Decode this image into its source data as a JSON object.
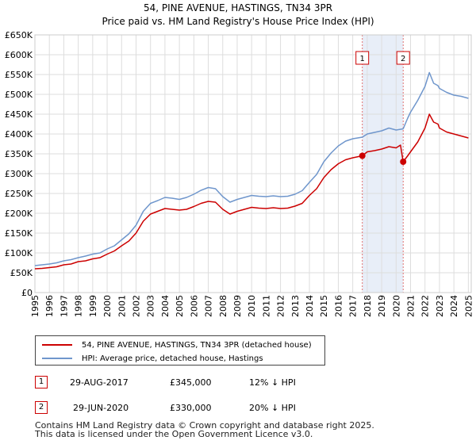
{
  "chart_data": {
    "type": "line",
    "title": "54, PINE AVENUE, HASTINGS, TN34 3PR",
    "subtitle": "Price paid vs. HM Land Registry's House Price Index (HPI)",
    "x_range": [
      1995,
      2025.2
    ],
    "ylim": [
      0,
      650000
    ],
    "y_ticks": [
      0,
      50000,
      100000,
      150000,
      200000,
      250000,
      300000,
      350000,
      400000,
      450000,
      500000,
      550000,
      600000,
      650000
    ],
    "y_tick_labels": [
      "£0",
      "£50K",
      "£100K",
      "£150K",
      "£200K",
      "£250K",
      "£300K",
      "£350K",
      "£400K",
      "£450K",
      "£500K",
      "£550K",
      "£600K",
      "£650K"
    ],
    "x_ticks": [
      1995,
      1996,
      1997,
      1998,
      1999,
      2000,
      2001,
      2002,
      2003,
      2004,
      2005,
      2006,
      2007,
      2008,
      2009,
      2010,
      2011,
      2012,
      2013,
      2014,
      2015,
      2016,
      2017,
      2018,
      2019,
      2020,
      2021,
      2022,
      2023,
      2024,
      2025
    ],
    "grid": true,
    "shaded_region": [
      2017.66,
      2020.49
    ],
    "series": [
      {
        "name": "54, PINE AVENUE, HASTINGS, TN34 3PR (detached house)",
        "color": "#cc0000",
        "x": [
          1995,
          1995.5,
          1996,
          1996.5,
          1997,
          1997.5,
          1998,
          1998.5,
          1999,
          1999.5,
          2000,
          2000.5,
          2001,
          2001.5,
          2002,
          2002.5,
          2003,
          2003.5,
          2004,
          2004.5,
          2005,
          2005.5,
          2006,
          2006.5,
          2007,
          2007.5,
          2008,
          2008.5,
          2009,
          2009.5,
          2010,
          2010.5,
          2011,
          2011.5,
          2012,
          2012.5,
          2013,
          2013.5,
          2014,
          2014.5,
          2015,
          2015.5,
          2016,
          2016.5,
          2017,
          2017.66,
          2018,
          2018.5,
          2019,
          2019.5,
          2020,
          2020.3,
          2020.49,
          2020.8,
          2021,
          2021.5,
          2022,
          2022.3,
          2022.6,
          2022.9,
          2023,
          2023.5,
          2024,
          2024.5,
          2025
        ],
        "values": [
          60000,
          61000,
          63000,
          65000,
          70000,
          72000,
          78000,
          80000,
          85000,
          88000,
          97000,
          105000,
          118000,
          130000,
          150000,
          180000,
          198000,
          205000,
          212000,
          210000,
          208000,
          210000,
          217000,
          225000,
          230000,
          228000,
          210000,
          198000,
          205000,
          210000,
          215000,
          213000,
          212000,
          214000,
          212000,
          213000,
          218000,
          225000,
          245000,
          262000,
          290000,
          310000,
          325000,
          335000,
          340000,
          345000,
          355000,
          358000,
          362000,
          368000,
          365000,
          372000,
          330000,
          345000,
          355000,
          380000,
          415000,
          450000,
          430000,
          425000,
          415000,
          405000,
          400000,
          395000,
          390000
        ]
      },
      {
        "name": "HPI: Average price, detached house, Hastings",
        "color": "#6f96cc",
        "x": [
          1995,
          1995.5,
          1996,
          1996.5,
          1997,
          1997.5,
          1998,
          1998.5,
          1999,
          1999.5,
          2000,
          2000.5,
          2001,
          2001.5,
          2002,
          2002.5,
          2003,
          2003.5,
          2004,
          2004.5,
          2005,
          2005.5,
          2006,
          2006.5,
          2007,
          2007.5,
          2008,
          2008.5,
          2009,
          2009.5,
          2010,
          2010.5,
          2011,
          2011.5,
          2012,
          2012.5,
          2013,
          2013.5,
          2014,
          2014.5,
          2015,
          2015.5,
          2016,
          2016.5,
          2017,
          2017.66,
          2018,
          2018.5,
          2019,
          2019.5,
          2020,
          2020.49,
          2020.8,
          2021,
          2021.5,
          2022,
          2022.3,
          2022.6,
          2022.9,
          2023,
          2023.5,
          2024,
          2024.5,
          2025
        ],
        "values": [
          68000,
          70000,
          72000,
          75000,
          80000,
          83000,
          88000,
          92000,
          97000,
          100000,
          110000,
          118000,
          133000,
          148000,
          170000,
          205000,
          225000,
          232000,
          240000,
          238000,
          235000,
          240000,
          248000,
          258000,
          265000,
          262000,
          242000,
          228000,
          235000,
          240000,
          245000,
          243000,
          242000,
          244000,
          242000,
          243000,
          248000,
          257000,
          278000,
          298000,
          330000,
          352000,
          370000,
          382000,
          388000,
          392000,
          400000,
          404000,
          408000,
          415000,
          410000,
          413000,
          440000,
          455000,
          485000,
          520000,
          555000,
          528000,
          522000,
          515000,
          505000,
          498000,
          495000,
          490000
        ]
      }
    ],
    "annotations": [
      {
        "label": "1",
        "x": 2017.66,
        "value": 345000
      },
      {
        "label": "2",
        "x": 2020.49,
        "value": 330000
      }
    ]
  },
  "legend": {
    "red_label": "54, PINE AVENUE, HASTINGS, TN34 3PR (detached house)",
    "blue_label": "HPI: Average price, detached house, Hastings"
  },
  "transactions": [
    {
      "num": "1",
      "date": "29-AUG-2017",
      "price": "£345,000",
      "hpi": "12% ↓ HPI"
    },
    {
      "num": "2",
      "date": "29-JUN-2020",
      "price": "£330,000",
      "hpi": "20% ↓ HPI"
    }
  ],
  "footer": {
    "line1": "Contains HM Land Registry data © Crown copyright and database right 2025.",
    "line2": "This data is licensed under the Open Government Licence v3.0."
  },
  "colors": {
    "red": "#cc0000",
    "blue": "#6f96cc",
    "shade": "#e8eef8",
    "grid": "#dddddd"
  }
}
